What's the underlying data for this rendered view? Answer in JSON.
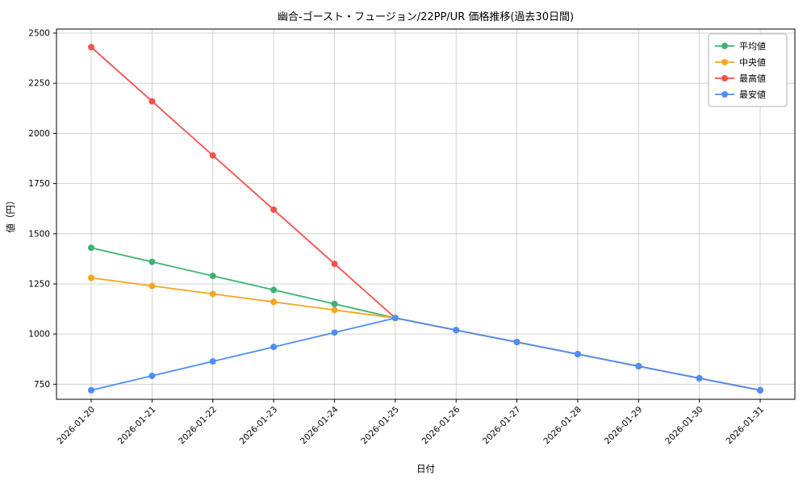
{
  "chart_data": {
    "type": "line",
    "title": "幽合-ゴースト・フュージョン/22PP/UR 価格推移(過去30日間)",
    "xlabel": "日付",
    "ylabel": "値（円）",
    "categories": [
      "2026-01-20",
      "2026-01-21",
      "2026-01-22",
      "2026-01-23",
      "2026-01-24",
      "2026-01-25",
      "2026-01-26",
      "2026-01-27",
      "2026-01-28",
      "2026-01-29",
      "2026-01-30",
      "2026-01-31"
    ],
    "y_ticks": [
      750,
      1000,
      1250,
      1500,
      1750,
      2000,
      2250,
      2500
    ],
    "ylim": [
      675,
      2520
    ],
    "grid": true,
    "grid_color": "#c8c8c8",
    "spine_color": "#000000",
    "legend_position": "upper right",
    "series": [
      {
        "key": "average",
        "name": "平均値",
        "color": "#3cb371",
        "values": [
          1430,
          1360,
          1290,
          1220,
          1150,
          1080,
          1020,
          960,
          900,
          840,
          780,
          720
        ]
      },
      {
        "key": "median",
        "name": "中央値",
        "color": "#f5a623",
        "values": [
          1280,
          1240,
          1200,
          1160,
          1120,
          1080,
          1020,
          960,
          900,
          840,
          780,
          720
        ]
      },
      {
        "key": "highest",
        "name": "最高値",
        "color": "#f8514d",
        "values": [
          2430,
          2160,
          1890,
          1620,
          1350,
          1080,
          1020,
          960,
          900,
          840,
          780,
          720
        ]
      },
      {
        "key": "lowest",
        "name": "最安値",
        "color": "#4e8ef7",
        "values": [
          720,
          792,
          864,
          936,
          1008,
          1080,
          1020,
          960,
          900,
          840,
          780,
          720
        ]
      }
    ]
  }
}
